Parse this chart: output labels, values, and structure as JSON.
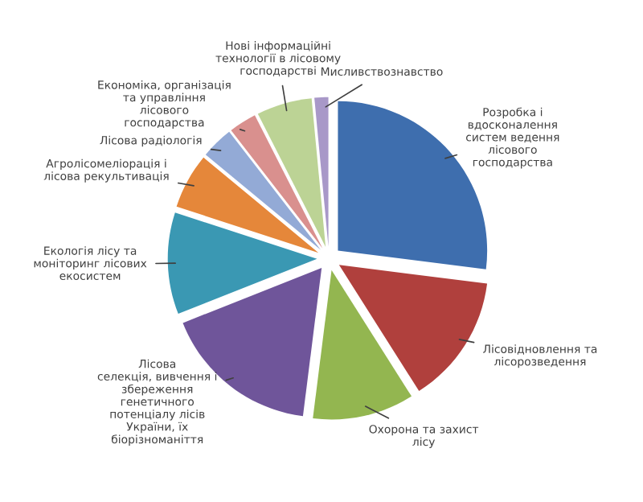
{
  "chart_data": {
    "type": "pie",
    "categories": [
      "Розробка і\nвдосконалення\nсистем ведення\nлісового\nгосподарства",
      "Лісовідновлення та\nлісорозведення",
      "Охорона та захист\nлісу",
      "Лісова\nселекція, вивчення і\nзбереження\nгенетичного\nпотенціалу лісів\nУкраїни, їх\nбіорізноманіття",
      "Екологія лісу та\nмоніторинг лісових\nекосистем",
      "Агролісомеліорація і\nлісова рекультивація",
      "Лісова радіологія",
      "Економіка, організація\nта управління\nлісового\nгосподарства",
      "Нові інформаційні\nтехнології в лісовому\nгосподарстві",
      "Мисливствознавство"
    ],
    "values": [
      27,
      14,
      11,
      17,
      11,
      6,
      3.5,
      3,
      6,
      1.5
    ],
    "colors": [
      "#3e6eae",
      "#b0403d",
      "#93b650",
      "#6f559a",
      "#3a98b3",
      "#e5873a",
      "#93aad6",
      "#d9908e",
      "#bcd395",
      "#a898c8"
    ],
    "legend": false
  }
}
